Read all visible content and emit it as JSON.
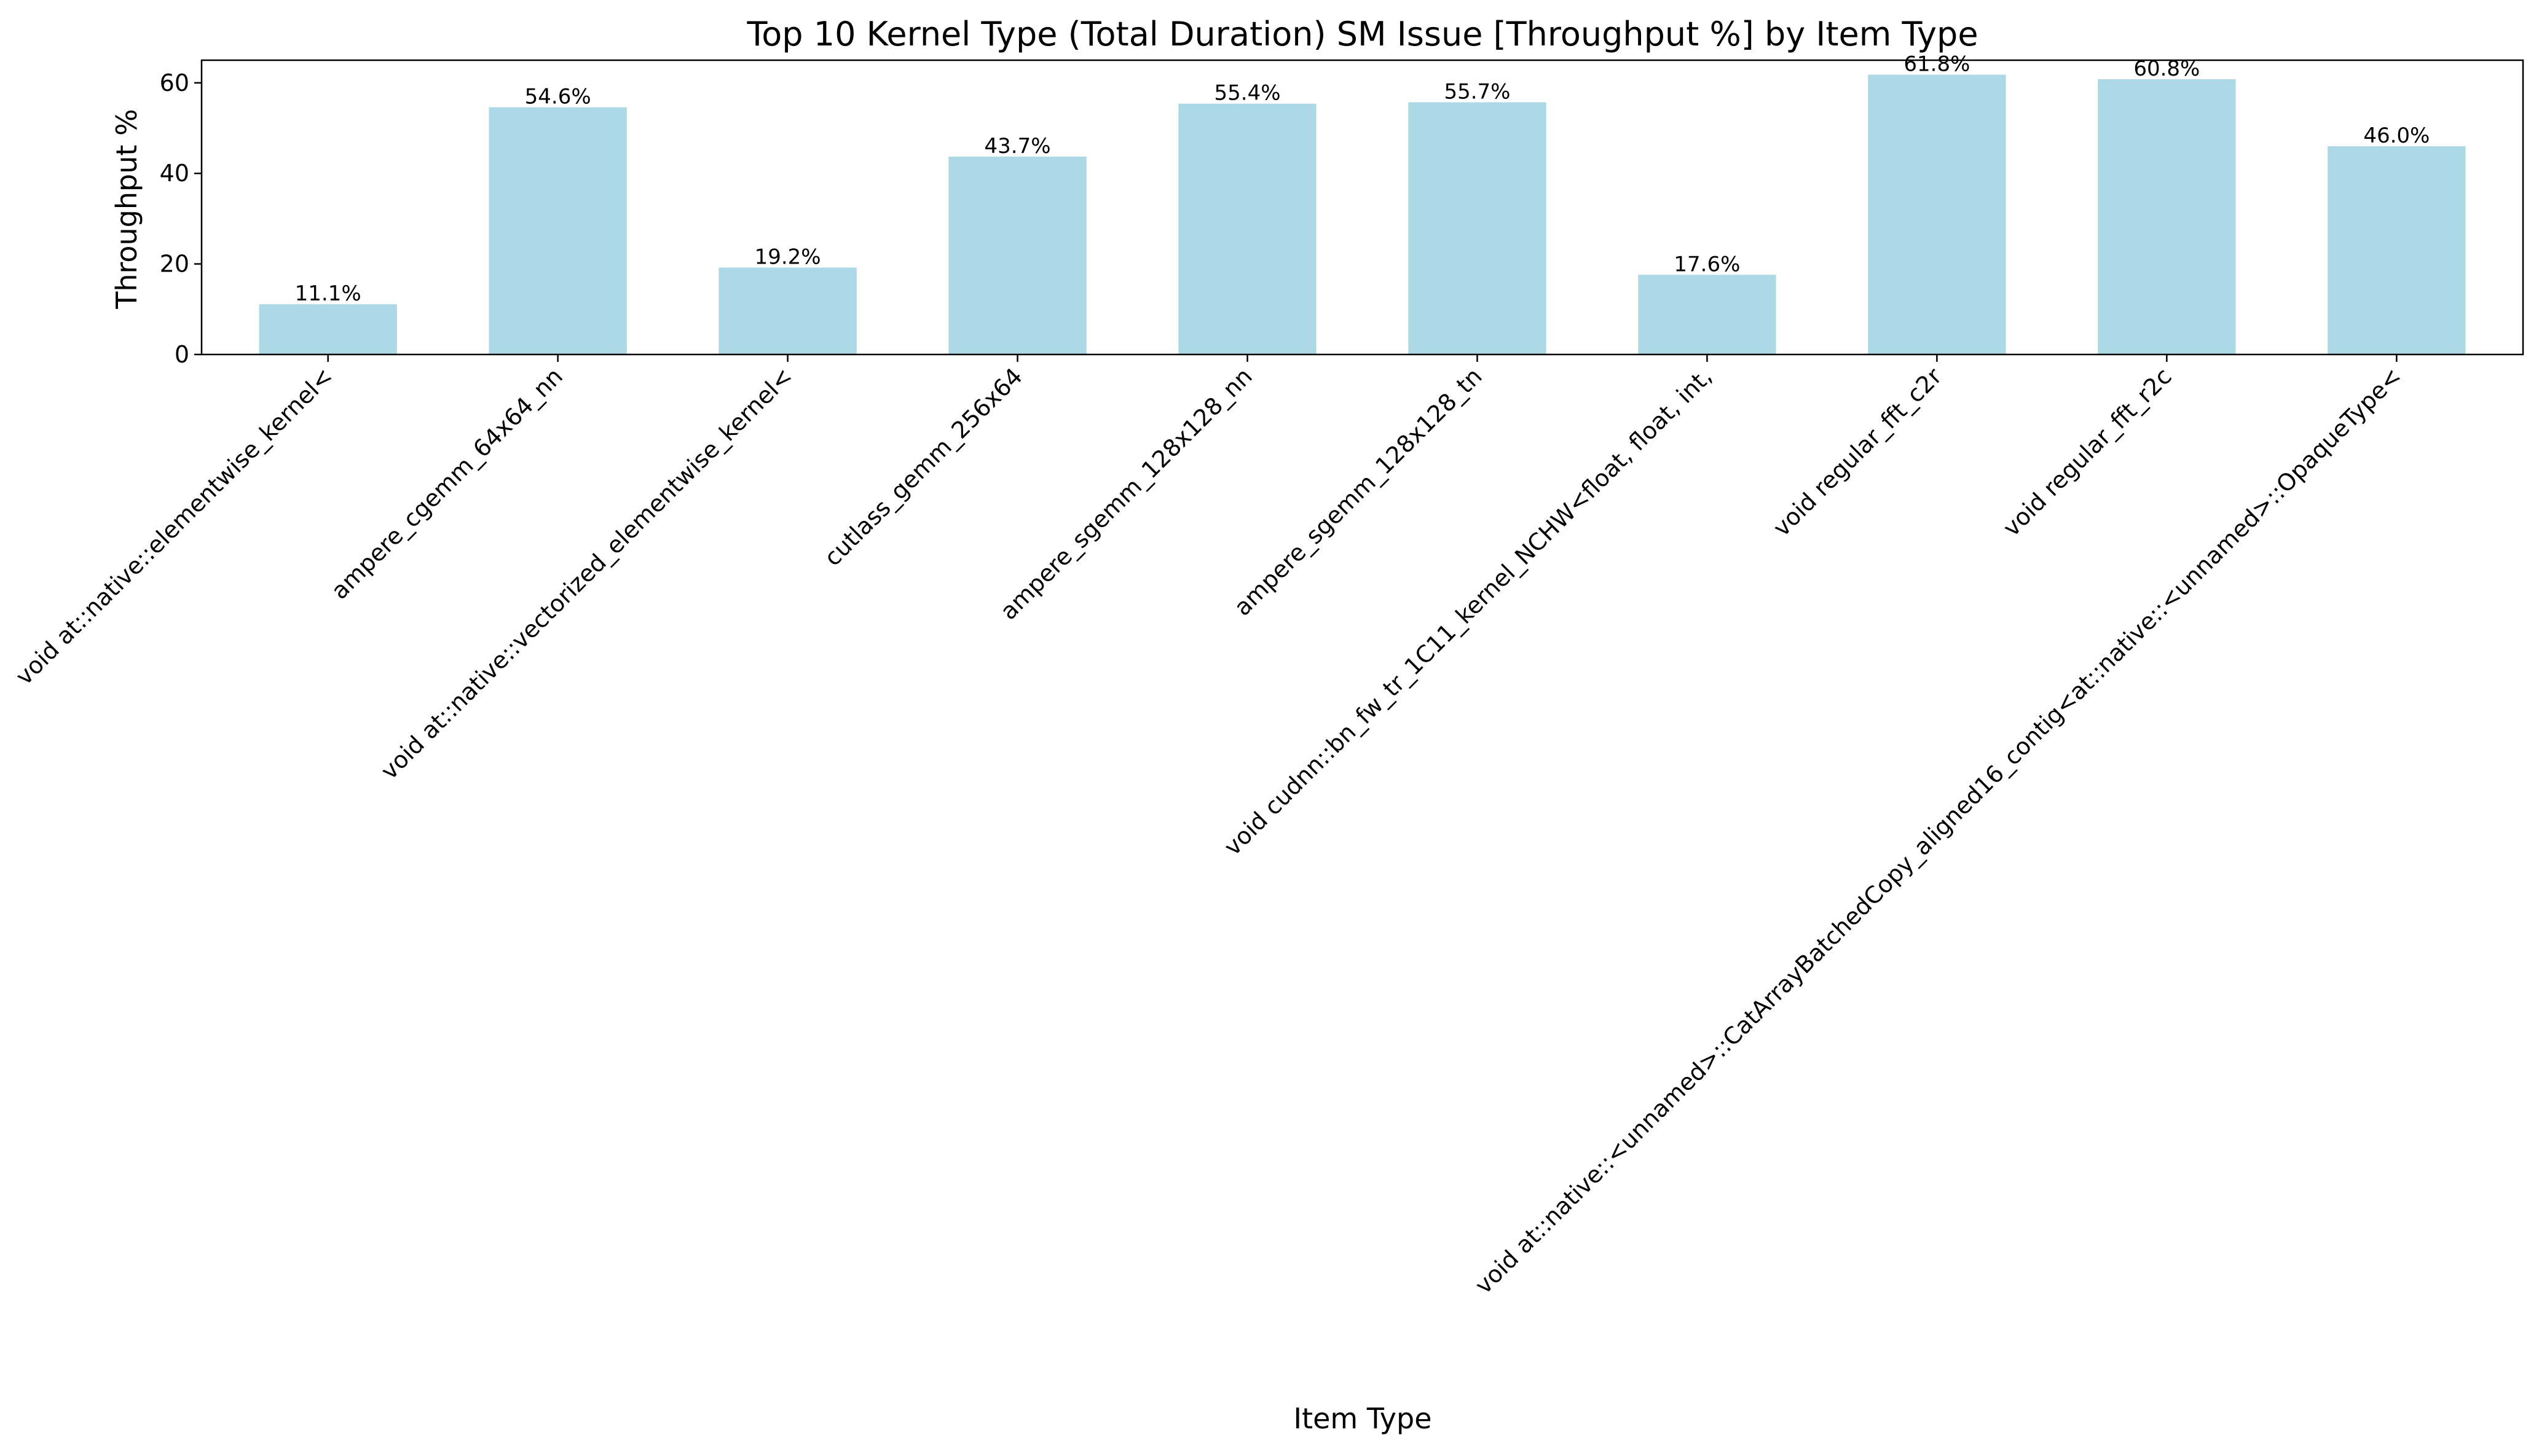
{
  "chart_data": {
    "type": "bar",
    "title": "Top 10 Kernel Type (Total Duration) SM Issue [Throughput %] by Item Type",
    "xlabel": "Item Type",
    "ylabel": "Throughput %",
    "ylim": [
      0,
      65
    ],
    "yticks": [
      0,
      20,
      40,
      60
    ],
    "categories": [
      "void at::native::elementwise_kernel<",
      "ampere_cgemm_64x64_nn",
      "void at::native::vectorized_elementwise_kernel<",
      "cutlass_gemm_256x64",
      "ampere_sgemm_128x128_nn",
      "ampere_sgemm_128x128_tn",
      "void cudnn::bn_fw_tr_1C11_kernel_NCHW<float, float, int,",
      "void regular_fft_c2r",
      "void regular_fft_r2c",
      "void at::native::<unnamed>::CatArrayBatchedCopy_aligned16_contig<at::native::<unnamed>::OpaqueType<"
    ],
    "values": [
      11.1,
      54.6,
      19.2,
      43.7,
      55.4,
      55.7,
      17.6,
      61.8,
      60.8,
      46.0
    ],
    "data_labels": [
      "11.1%",
      "54.6%",
      "19.2%",
      "43.7%",
      "55.4%",
      "55.7%",
      "17.6%",
      "61.8%",
      "60.8%",
      "46.0%"
    ],
    "bar_color": "#add8e6",
    "grid": false,
    "legend": "none"
  }
}
